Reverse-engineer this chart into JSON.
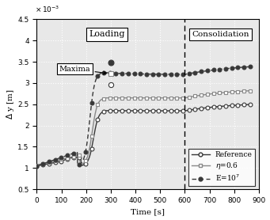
{
  "xlabel": "Time [s]",
  "ylabel": "Δ y [m]",
  "xlim": [
    0,
    900
  ],
  "ylim": [
    0.0005,
    0.0045
  ],
  "ytick_vals": [
    0.0005,
    0.001,
    0.0015,
    0.002,
    0.0025,
    0.003,
    0.0035,
    0.004,
    0.0045
  ],
  "ytick_labels": [
    "0.5",
    "1",
    "1.5",
    "2",
    "2.5",
    "3",
    "3.5",
    "4",
    "4.5"
  ],
  "xticks": [
    0,
    100,
    200,
    300,
    400,
    500,
    600,
    700,
    800,
    900
  ],
  "vline_x": 600,
  "loading_label": "Loading",
  "consolidation_label": "Consolidation",
  "maxima_label": "Maxima",
  "ref_color": "#383838",
  "eta_color": "#888888",
  "E_color": "#383838",
  "bg_color": "#e8e8e8",
  "grid_color": "#ffffff"
}
